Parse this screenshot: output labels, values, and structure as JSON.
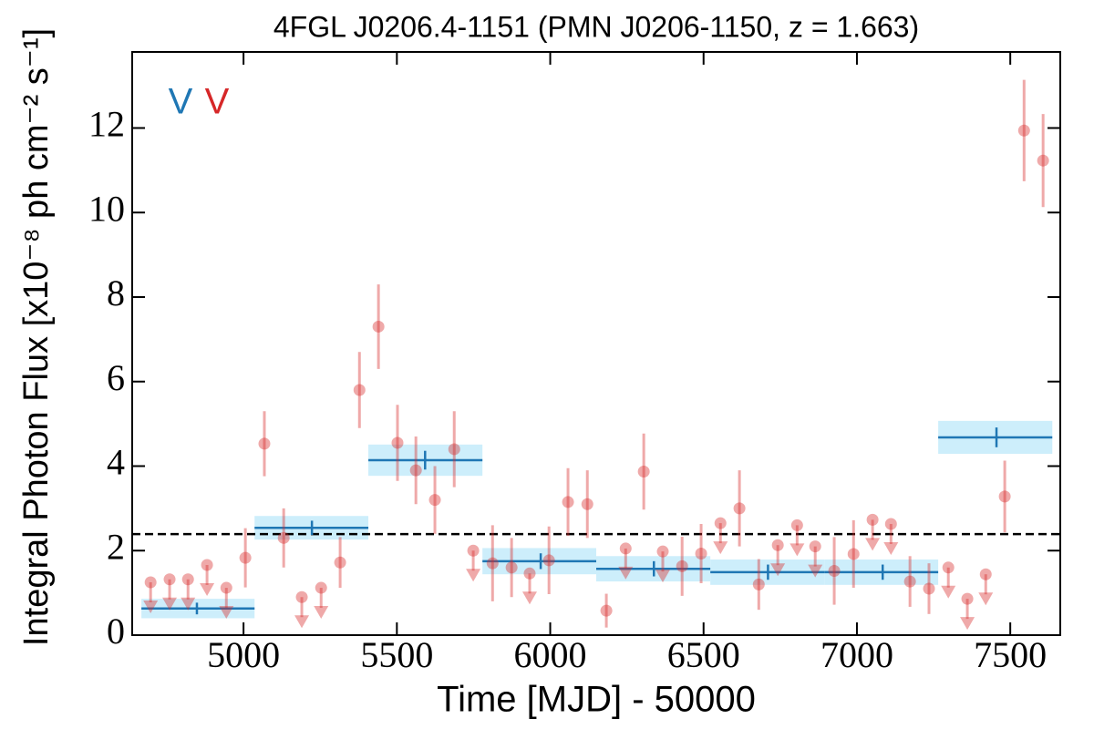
{
  "chart_data": {
    "type": "errorbar",
    "title": "4FGL J0206.4-1151 (PMN J0206-1150, z = 1.663)",
    "xlabel": "Time [MJD] - 50000",
    "ylabel": "Integral Photon Flux [x10⁻⁸ ph cm⁻² s⁻¹]",
    "xlim": [
      4637,
      7663
    ],
    "ylim": [
      0,
      13.8
    ],
    "xticks": [
      5000,
      5500,
      6000,
      6500,
      7000,
      7500
    ],
    "yticks": [
      0,
      2,
      4,
      6,
      8,
      10,
      12
    ],
    "mean": 2.39,
    "blocks": {
      "name": "V",
      "color": "#1f77b4",
      "shade": "#cdeefb",
      "starts": [
        4667,
        5036,
        5407,
        5779,
        6150,
        6522,
        6894,
        7265
      ],
      "ends": [
        5036,
        5407,
        5779,
        6150,
        6522,
        6894,
        7265,
        7637
      ],
      "centers": [
        4848,
        5223,
        5592,
        5969,
        6338,
        6710,
        7084,
        7455
      ],
      "values": [
        0.63,
        2.54,
        4.14,
        1.75,
        1.57,
        1.49,
        1.49,
        4.68
      ],
      "errors": [
        0.23,
        0.28,
        0.37,
        0.31,
        0.3,
        0.3,
        0.3,
        0.39
      ]
    },
    "points": {
      "name": "V",
      "color": "#d62728",
      "x": [
        5006,
        5068,
        5131,
        5315,
        5378,
        5440,
        5502,
        5562,
        5624,
        5687,
        5812,
        5874,
        5996,
        6058,
        6121,
        6183,
        6305,
        6430,
        6492,
        6617,
        6680,
        6926,
        6989,
        7173,
        7235,
        7482,
        7545,
        7607
      ],
      "values": [
        1.83,
        4.53,
        2.3,
        1.72,
        5.8,
        7.3,
        4.55,
        3.9,
        3.2,
        4.4,
        1.7,
        1.6,
        1.77,
        3.15,
        3.1,
        0.58,
        3.87,
        1.63,
        1.93,
        3.0,
        1.2,
        1.52,
        1.92,
        1.27,
        1.1,
        3.28,
        11.94,
        11.23
      ],
      "errors": [
        0.7,
        0.77,
        0.7,
        0.6,
        0.9,
        1.0,
        0.9,
        0.8,
        0.8,
        0.9,
        0.9,
        0.7,
        0.8,
        0.8,
        0.8,
        0.4,
        0.9,
        0.7,
        0.7,
        0.9,
        0.6,
        0.8,
        0.8,
        0.6,
        0.6,
        0.85,
        1.2,
        1.1
      ]
    },
    "upper_limits": {
      "x": [
        4697,
        4759,
        4819,
        4881,
        4944,
        5190,
        5253,
        5749,
        5933,
        6246,
        6367,
        6555,
        6742,
        6805,
        6864,
        7051,
        7111,
        7298,
        7360,
        7420
      ],
      "values": [
        1.25,
        1.32,
        1.32,
        1.66,
        1.12,
        0.9,
        1.12,
        2.0,
        1.46,
        2.05,
        1.98,
        2.65,
        2.13,
        2.6,
        2.1,
        2.73,
        2.63,
        1.6,
        0.86,
        1.44
      ]
    }
  }
}
